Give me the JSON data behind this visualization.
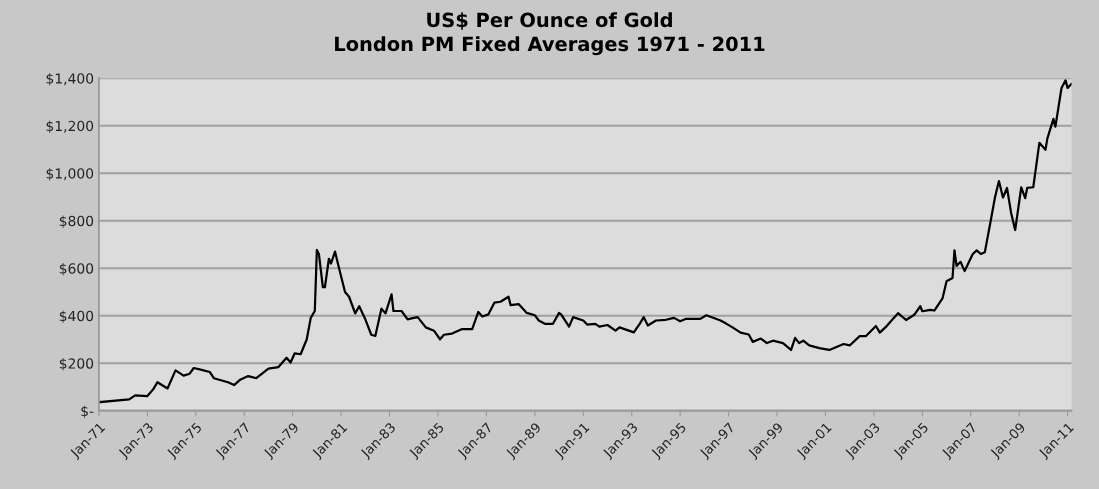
{
  "chart_data": {
    "type": "line",
    "title": "US$ Per Ounce of Gold\nLondon PM Fixed Averages 1971 - 2011",
    "x": [
      "1971-01",
      "1972-04",
      "1972-07",
      "1973-01",
      "1973-04",
      "1973-06",
      "1973-11",
      "1974-03",
      "1974-07",
      "1974-10",
      "1974-12",
      "1975-03",
      "1975-08",
      "1975-10",
      "1976-05",
      "1976-08",
      "1976-11",
      "1977-03",
      "1977-07",
      "1978-01",
      "1978-06",
      "1978-10",
      "1978-12",
      "1979-02",
      "1979-05",
      "1979-08",
      "1979-10",
      "1979-12",
      "1980-01",
      "1980-02",
      "1980-04",
      "1980-05",
      "1980-07",
      "1980-08",
      "1980-10",
      "1980-12",
      "1981-03",
      "1981-05",
      "1981-08",
      "1981-10",
      "1982-01",
      "1982-04",
      "1982-06",
      "1982-09",
      "1982-11",
      "1983-02",
      "1983-03",
      "1983-07",
      "1983-10",
      "1984-01",
      "1984-03",
      "1984-07",
      "1984-11",
      "1985-02",
      "1985-04",
      "1985-08",
      "1986-01",
      "1986-06",
      "1986-09",
      "1986-11",
      "1987-02",
      "1987-05",
      "1987-08",
      "1987-12",
      "1988-01",
      "1988-05",
      "1988-09",
      "1989-01",
      "1989-03",
      "1989-06",
      "1989-10",
      "1990-01",
      "1990-02",
      "1990-06",
      "1990-08",
      "1991-01",
      "1991-03",
      "1991-07",
      "1991-09",
      "1992-01",
      "1992-05",
      "1992-07",
      "1993-02",
      "1993-05",
      "1993-07",
      "1993-09",
      "1994-01",
      "1994-06",
      "1994-10",
      "1995-01",
      "1995-04",
      "1995-11",
      "1996-02",
      "1996-09",
      "1996-12",
      "1997-03",
      "1997-07",
      "1997-11",
      "1998-01",
      "1998-05",
      "1998-08",
      "1998-11",
      "1999-04",
      "1999-08",
      "1999-10",
      "1999-12",
      "2000-02",
      "2000-05",
      "2000-10",
      "2001-03",
      "2001-10",
      "2002-01",
      "2002-06",
      "2002-09",
      "2003-02",
      "2003-04",
      "2003-07",
      "2003-10",
      "2004-01",
      "2004-05",
      "2004-09",
      "2004-12",
      "2005-01",
      "2005-05",
      "2005-07",
      "2005-11",
      "2006-01",
      "2006-04",
      "2006-05",
      "2006-06",
      "2006-08",
      "2006-10",
      "2006-12",
      "2007-02",
      "2007-04",
      "2007-06",
      "2007-08",
      "2007-11",
      "2008-01",
      "2008-03",
      "2008-05",
      "2008-07",
      "2008-09",
      "2008-11",
      "2009-02",
      "2009-04",
      "2009-05",
      "2009-08",
      "2009-11",
      "2010-02",
      "2010-03",
      "2010-06",
      "2010-07",
      "2010-10",
      "2010-12",
      "2011-01",
      "2011-03"
    ],
    "series": [
      {
        "color": "#000000",
        "values": [
          36,
          48,
          65,
          62,
          91,
          120,
          94,
          170,
          148,
          156,
          180,
          174,
          163,
          137,
          120,
          108,
          131,
          146,
          137,
          177,
          184,
          223,
          203,
          242,
          238,
          300,
          391,
          420,
          677,
          660,
          520,
          520,
          640,
          620,
          670,
          600,
          500,
          480,
          410,
          440,
          385,
          320,
          315,
          430,
          410,
          490,
          420,
          420,
          385,
          391,
          394,
          351,
          337,
          301,
          320,
          325,
          344,
          344,
          416,
          397,
          406,
          455,
          459,
          480,
          445,
          449,
          412,
          402,
          380,
          366,
          366,
          412,
          406,
          354,
          394,
          380,
          363,
          366,
          354,
          361,
          337,
          351,
          330,
          366,
          394,
          359,
          380,
          383,
          391,
          377,
          387,
          387,
          402,
          380,
          366,
          351,
          329,
          321,
          290,
          304,
          285,
          295,
          285,
          256,
          307,
          285,
          295,
          275,
          264,
          256,
          281,
          275,
          314,
          314,
          357,
          329,
          353,
          382,
          411,
          382,
          404,
          440,
          419,
          425,
          422,
          473,
          545,
          559,
          675,
          610,
          627,
          588,
          624,
          660,
          675,
          660,
          667,
          804,
          898,
          967,
          898,
          938,
          833,
          761,
          941,
          895,
          938,
          941,
          1128,
          1099,
          1146,
          1229,
          1196,
          1359,
          1391,
          1359,
          1376
        ]
      }
    ],
    "xlim": [
      "1971-01",
      "2011-03"
    ],
    "xticks": [
      {
        "value": "1971-01",
        "label": "Jan-71"
      },
      {
        "value": "1973-01",
        "label": "Jan-73"
      },
      {
        "value": "1975-01",
        "label": "Jan-75"
      },
      {
        "value": "1977-01",
        "label": "Jan-77"
      },
      {
        "value": "1979-01",
        "label": "Jan-79"
      },
      {
        "value": "1981-01",
        "label": "Jan-81"
      },
      {
        "value": "1983-01",
        "label": "Jan-83"
      },
      {
        "value": "1985-01",
        "label": "Jan-85"
      },
      {
        "value": "1987-01",
        "label": "Jan-87"
      },
      {
        "value": "1989-01",
        "label": "Jan-89"
      },
      {
        "value": "1991-01",
        "label": "Jan-91"
      },
      {
        "value": "1993-01",
        "label": "Jan-93"
      },
      {
        "value": "1995-01",
        "label": "Jan-95"
      },
      {
        "value": "1997-01",
        "label": "Jan-97"
      },
      {
        "value": "1999-01",
        "label": "Jan-99"
      },
      {
        "value": "2001-01",
        "label": "Jan-01"
      },
      {
        "value": "2003-01",
        "label": "Jan-03"
      },
      {
        "value": "2005-01",
        "label": "Jan-05"
      },
      {
        "value": "2007-01",
        "label": "Jan-07"
      },
      {
        "value": "2009-01",
        "label": "Jan-09"
      },
      {
        "value": "2011-01",
        "label": "Jan-11"
      }
    ],
    "ylim": [
      0,
      1400
    ],
    "yticks": [
      {
        "value": 0,
        "label": "$-"
      },
      {
        "value": 200,
        "label": "$200"
      },
      {
        "value": 400,
        "label": "$400"
      },
      {
        "value": 600,
        "label": "$600"
      },
      {
        "value": 800,
        "label": "$800"
      },
      {
        "value": 1000,
        "label": "$1,000"
      },
      {
        "value": 1200,
        "label": "$1,200"
      },
      {
        "value": 1400,
        "label": "$1,400"
      }
    ],
    "grid": "y",
    "line_style": "solid"
  }
}
